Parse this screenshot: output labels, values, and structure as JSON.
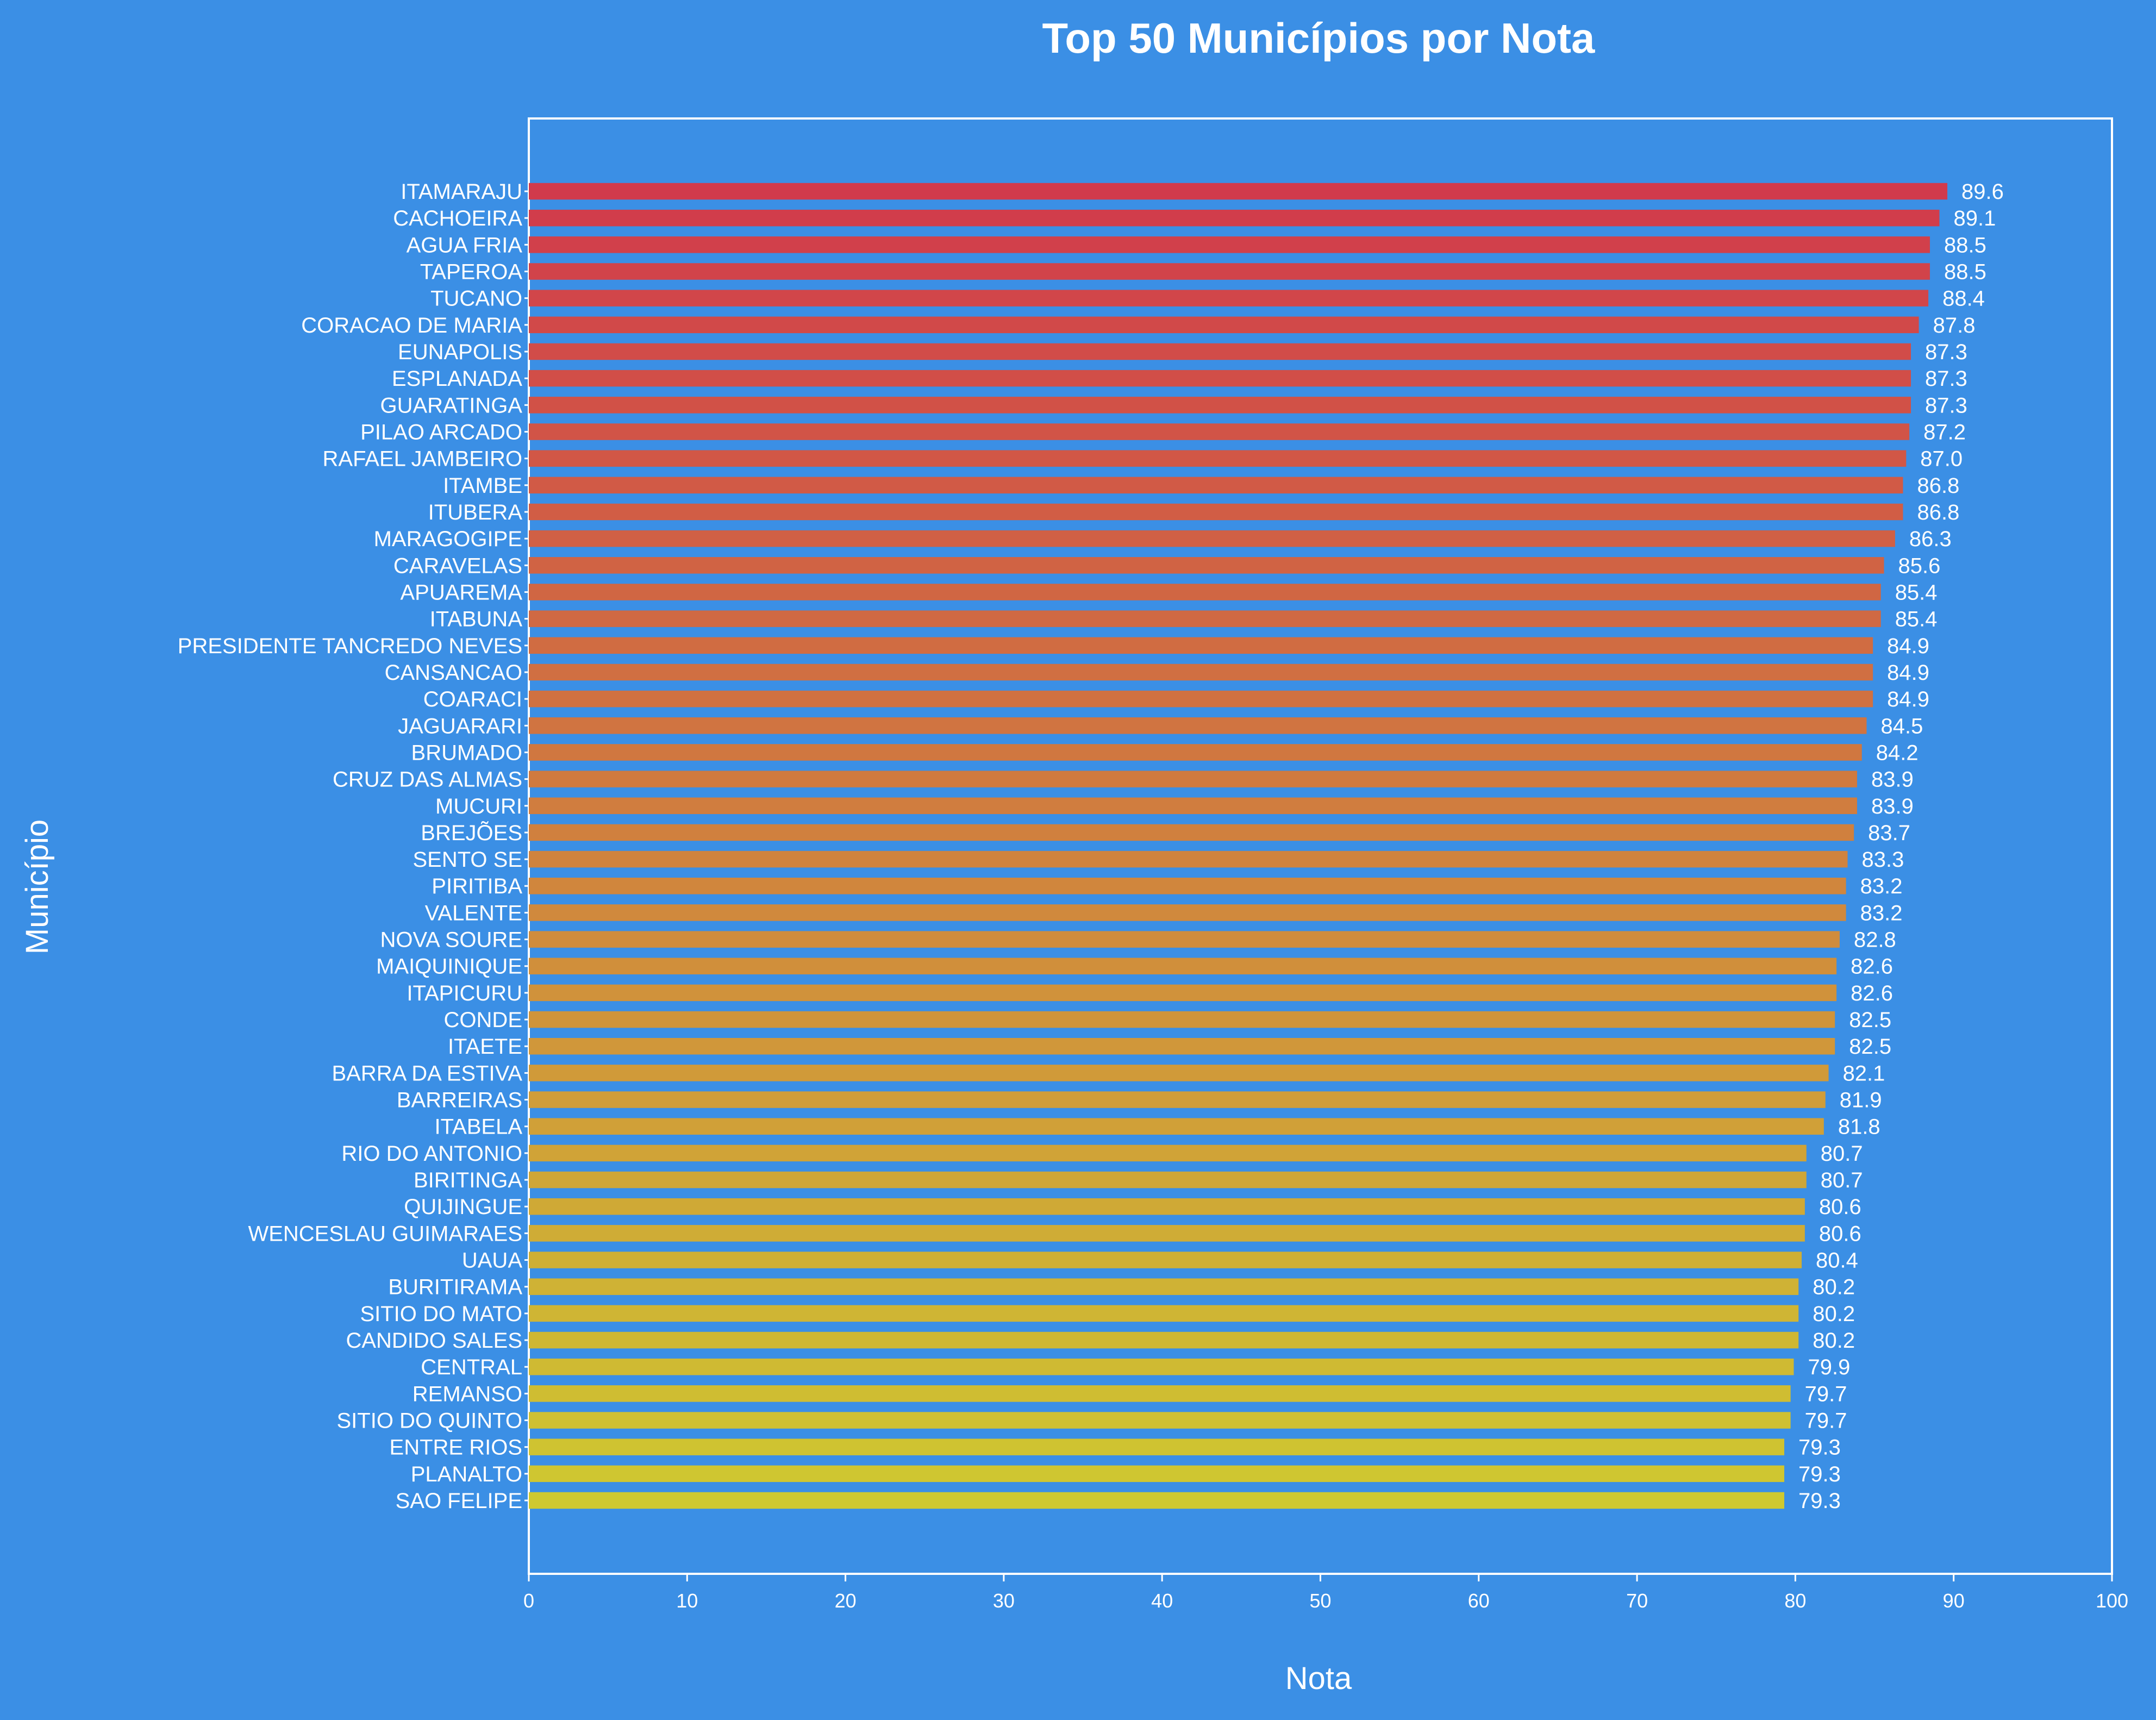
{
  "chart_data": {
    "type": "bar",
    "orientation": "horizontal",
    "title": "Top 50 Municípios por Nota",
    "xlabel": "Nota",
    "ylabel": "Município",
    "xlim": [
      0,
      100
    ],
    "xticks": [
      0,
      10,
      20,
      30,
      40,
      50,
      60,
      70,
      80,
      90,
      100
    ],
    "grid": false,
    "legend": "none",
    "colors": {
      "background": "#3b8fe5",
      "top": "#d13a4c",
      "bottom": "#cfc930",
      "text": "#ffffff"
    },
    "categories": [
      "ITAMARAJU",
      "CACHOEIRA",
      "AGUA FRIA",
      "TAPEROA",
      "TUCANO",
      "CORACAO DE MARIA",
      "EUNAPOLIS",
      "ESPLANADA",
      "GUARATINGA",
      "PILAO ARCADO",
      "RAFAEL JAMBEIRO",
      "ITAMBE",
      "ITUBERA",
      "MARAGOGIPE",
      "CARAVELAS",
      "APUAREMA",
      "ITABUNA",
      "PRESIDENTE TANCREDO NEVES",
      "CANSANCAO",
      "COARACI",
      "JAGUARARI",
      "BRUMADO",
      "CRUZ DAS ALMAS",
      "MUCURI",
      "BREJÕES",
      "SENTO SE",
      "PIRITIBA",
      "VALENTE",
      "NOVA SOURE",
      "MAIQUINIQUE",
      "ITAPICURU",
      "CONDE",
      "ITAETE",
      "BARRA DA ESTIVA",
      "BARREIRAS",
      "ITABELA",
      "RIO DO ANTONIO",
      "BIRITINGA",
      "QUIJINGUE",
      "WENCESLAU GUIMARAES",
      "UAUA",
      "BURITIRAMA",
      "SITIO DO MATO",
      "CANDIDO SALES",
      "CENTRAL",
      "REMANSO",
      "SITIO DO QUINTO",
      "ENTRE RIOS",
      "PLANALTO",
      "SAO FELIPE"
    ],
    "values": [
      89.6,
      89.1,
      88.5,
      88.5,
      88.4,
      87.8,
      87.3,
      87.3,
      87.3,
      87.2,
      87.0,
      86.8,
      86.8,
      86.3,
      85.6,
      85.4,
      85.4,
      84.9,
      84.9,
      84.9,
      84.5,
      84.2,
      83.9,
      83.9,
      83.7,
      83.3,
      83.2,
      83.2,
      82.8,
      82.6,
      82.6,
      82.5,
      82.5,
      82.1,
      81.9,
      81.8,
      80.7,
      80.7,
      80.6,
      80.6,
      80.4,
      80.2,
      80.2,
      80.2,
      79.9,
      79.7,
      79.7,
      79.3,
      79.3,
      79.3
    ],
    "value_labels": [
      "89.6",
      "89.1",
      "88.5",
      "88.5",
      "88.4",
      "87.8",
      "87.3",
      "87.3",
      "87.3",
      "87.2",
      "87.0",
      "86.8",
      "86.8",
      "86.3",
      "85.6",
      "85.4",
      "85.4",
      "84.9",
      "84.9",
      "84.9",
      "84.5",
      "84.2",
      "83.9",
      "83.9",
      "83.7",
      "83.3",
      "83.2",
      "83.2",
      "82.8",
      "82.6",
      "82.6",
      "82.5",
      "82.5",
      "82.1",
      "81.9",
      "81.8",
      "80.7",
      "80.7",
      "80.6",
      "80.6",
      "80.4",
      "80.2",
      "80.2",
      "80.2",
      "79.9",
      "79.7",
      "79.7",
      "79.3",
      "79.3",
      "79.3"
    ]
  }
}
